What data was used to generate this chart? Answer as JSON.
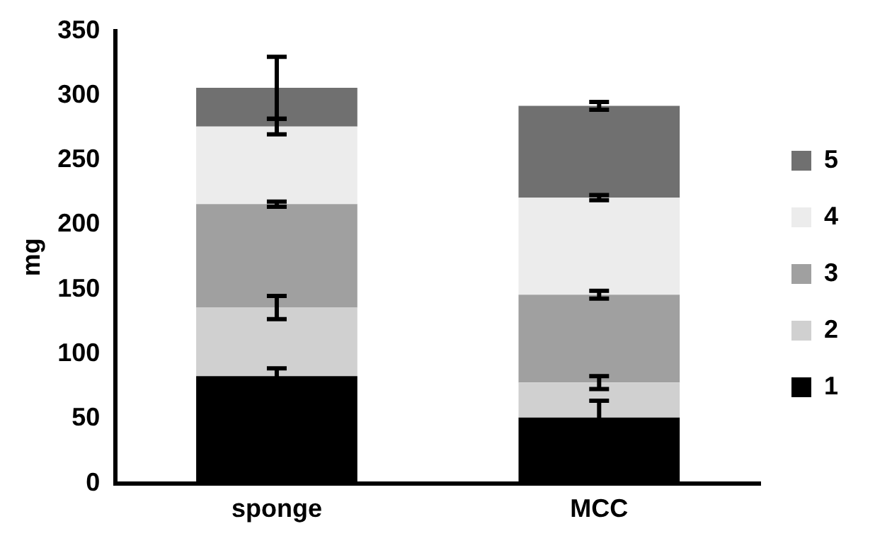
{
  "chart_data": {
    "type": "bar",
    "stacked": true,
    "ylabel": "mg",
    "categories": [
      "sponge",
      "MCC"
    ],
    "series": [
      {
        "name": "1",
        "color": "#000000",
        "values": [
          83,
          51
        ],
        "errors": [
          6,
          13
        ]
      },
      {
        "name": "2",
        "color": "#d0d0d0",
        "values": [
          53,
          27
        ],
        "errors": [
          9,
          5
        ]
      },
      {
        "name": "3",
        "color": "#a0a0a0",
        "values": [
          80,
          68
        ],
        "errors": [
          2,
          3
        ]
      },
      {
        "name": "4",
        "color": "#ececec",
        "values": [
          60,
          75
        ],
        "errors": [
          6,
          2
        ]
      },
      {
        "name": "5",
        "color": "#707070",
        "values": [
          30,
          71
        ],
        "errors": [
          24,
          3
        ]
      }
    ],
    "ylim": [
      0,
      350
    ],
    "yticks": [
      0,
      50,
      100,
      150,
      200,
      250,
      300,
      350
    ],
    "grid": false,
    "legend": "right"
  }
}
